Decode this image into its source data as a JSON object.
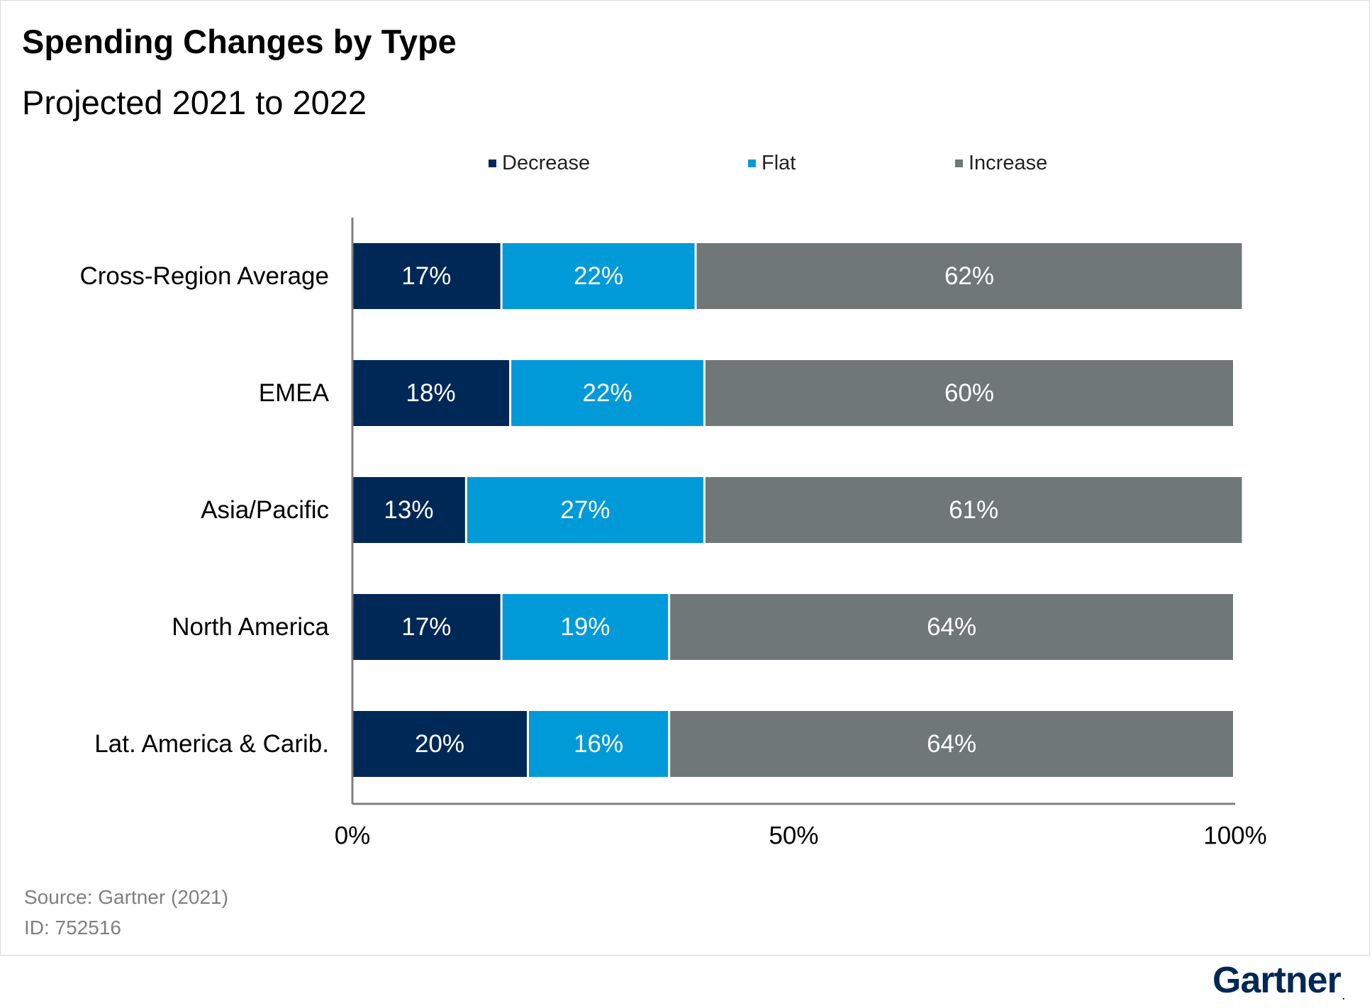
{
  "title": "Spending Changes by Type",
  "subtitle": "Projected 2021 to 2022",
  "source": "Source: Gartner (2021)",
  "source_id": "ID: 752516",
  "brand": {
    "name": "Gartner",
    "mark": "."
  },
  "colors": {
    "decrease": "#002856",
    "flat": "#009ad9",
    "increase": "#6f7777"
  },
  "chart_data": {
    "type": "bar",
    "orientation": "horizontal",
    "stacked": true,
    "categories": [
      "Cross-Region Average",
      "EMEA",
      "Asia/Pacific",
      "North America",
      "Lat. America & Carib."
    ],
    "series": [
      {
        "name": "Decrease",
        "values": [
          17,
          18,
          13,
          17,
          20
        ],
        "labels": [
          "17%",
          "18%",
          "13%",
          "17%",
          "20%"
        ]
      },
      {
        "name": "Flat",
        "values": [
          22,
          22,
          27,
          19,
          16
        ],
        "labels": [
          "22%",
          "22%",
          "27%",
          "19%",
          "16%"
        ]
      },
      {
        "name": "Increase",
        "values": [
          62,
          60,
          61,
          64,
          64
        ],
        "labels": [
          "62%",
          "60%",
          "61%",
          "64%",
          "64%"
        ]
      }
    ],
    "xlim": [
      0,
      100
    ],
    "xticks": [
      0,
      50,
      100
    ],
    "xtick_labels": [
      "0%",
      "50%",
      "100%"
    ],
    "grid": false,
    "legend": "top-center"
  }
}
